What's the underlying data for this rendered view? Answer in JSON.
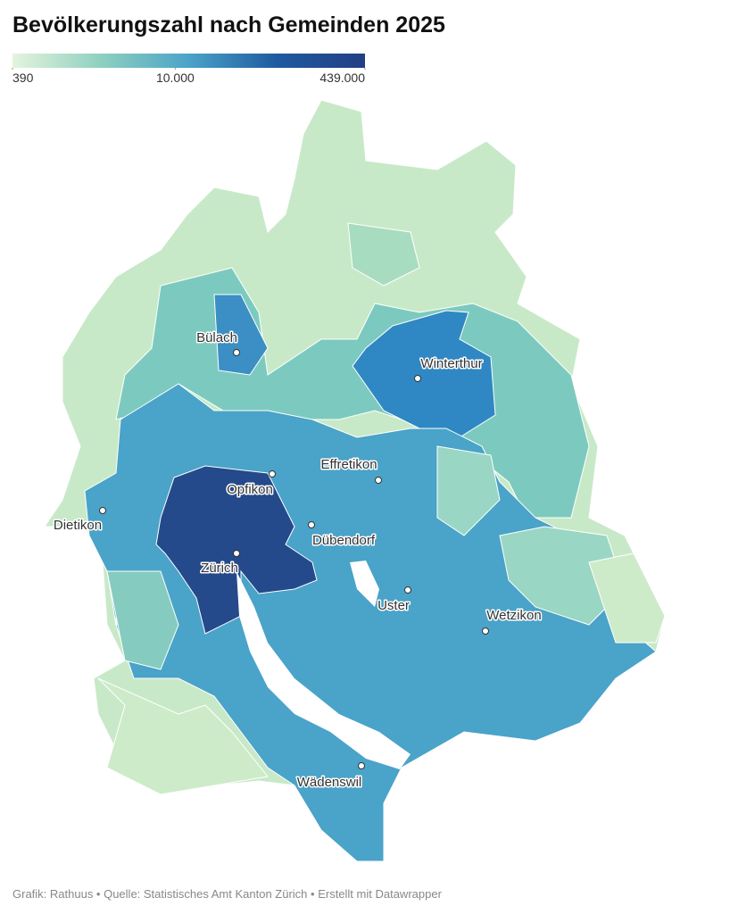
{
  "title": "Bevölkerungszahl nach Gemeinden 2025",
  "legend": {
    "scale": "log",
    "colors": [
      "#e4f4dd",
      "#8fd0c0",
      "#4aa3c8",
      "#1f5aa0",
      "#233f85"
    ],
    "ticks": [
      390,
      {
        "value": 10000,
        "label": "10.000"
      },
      {
        "value": 439000,
        "label": "439.000"
      }
    ]
  },
  "places": [
    "Bülach",
    "Winterthur",
    "Effretikon",
    "Opfikon",
    "Dietikon",
    "Dübendorf",
    "Zürich",
    "Uster",
    "Wetzikon",
    "Wädenswil"
  ],
  "footer": "Grafik: Rathuus • Quelle: Statistisches Amt Kanton Zürich • Erstellt mit Datawrapper"
}
